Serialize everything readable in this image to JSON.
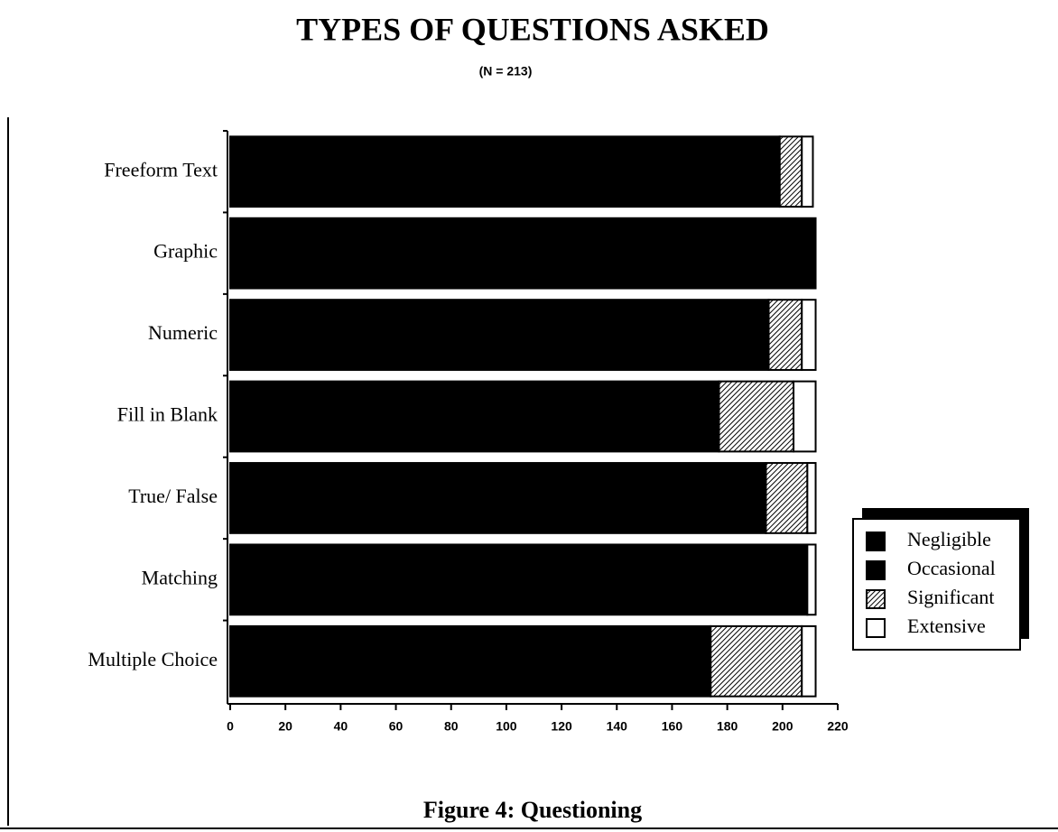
{
  "chart_data": {
    "type": "stacked-barh",
    "title": "TYPES OF QUESTIONS ASKED",
    "subtitle": "(N = 213)",
    "caption": "Figure 4: Questioning",
    "categories": [
      "Freeform Text",
      "Graphic",
      "Numeric",
      "Fill in Blank",
      "True/ False",
      "Matching",
      "Multiple Choice"
    ],
    "series": [
      {
        "name": "Negligible",
        "color": "#000000",
        "values": [
          199,
          212,
          195,
          177,
          194,
          209,
          174
        ]
      },
      {
        "name": "Occasional",
        "color": "#000000",
        "values": [
          0,
          0,
          0,
          0,
          0,
          0,
          0
        ]
      },
      {
        "name": "Significant",
        "color": "#ffffff",
        "pattern": "hatch",
        "values": [
          8,
          0,
          12,
          27,
          15,
          0,
          33
        ]
      },
      {
        "name": "Extensive",
        "color": "#ffffff",
        "values": [
          4,
          0,
          5,
          8,
          3,
          3,
          5
        ]
      }
    ],
    "xlim": [
      0,
      220
    ],
    "xticks": [
      0,
      20,
      40,
      60,
      80,
      100,
      120,
      140,
      160,
      180,
      200,
      220
    ],
    "legend": "right"
  }
}
